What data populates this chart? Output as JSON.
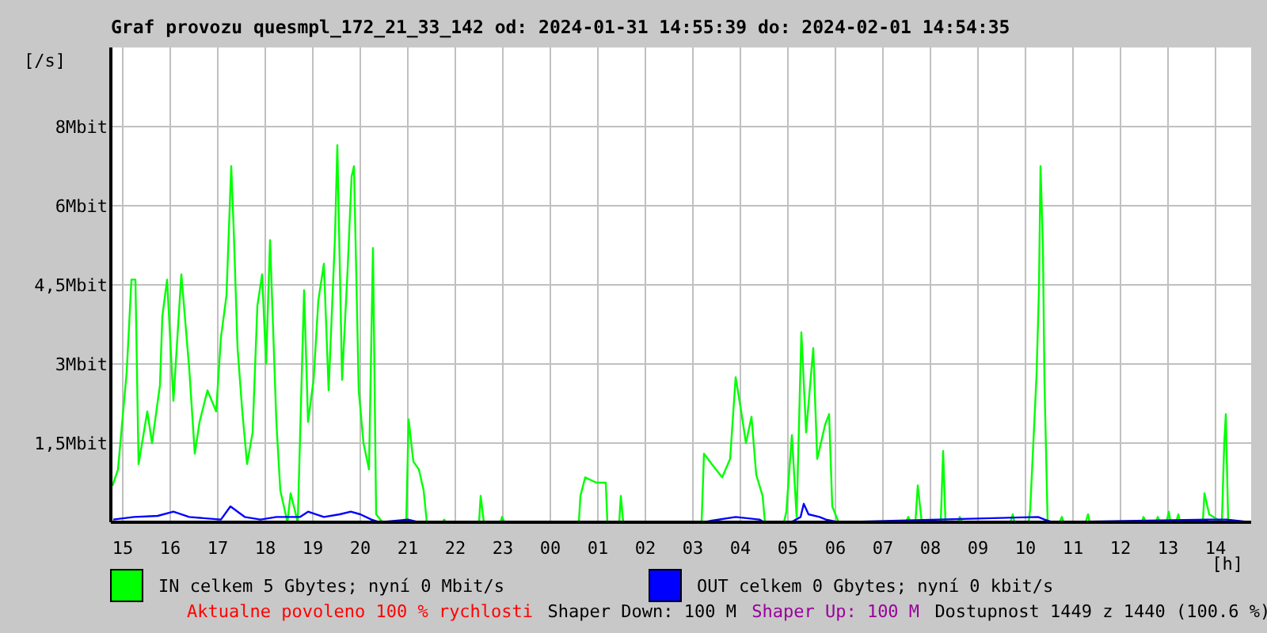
{
  "chart_data": {
    "type": "line",
    "title": "Graf provozu quesmpl_172_21_33_142 od: 2024-01-31 14:55:39 do: 2024-02-01 14:54:35",
    "ylabel": "[/s]",
    "xlabel": "[h]",
    "xlim": [
      "2024-01-31T14:45",
      "2024-02-01T14:45"
    ],
    "xticks": [
      {
        "value": "2024-01-31T15:00",
        "label": "15"
      },
      {
        "value": "2024-01-31T16:00",
        "label": "16"
      },
      {
        "value": "2024-01-31T17:00",
        "label": "17"
      },
      {
        "value": "2024-01-31T18:00",
        "label": "18"
      },
      {
        "value": "2024-01-31T19:00",
        "label": "19"
      },
      {
        "value": "2024-01-31T20:00",
        "label": "20"
      },
      {
        "value": "2024-01-31T21:00",
        "label": "21"
      },
      {
        "value": "2024-01-31T22:00",
        "label": "22"
      },
      {
        "value": "2024-01-31T23:00",
        "label": "23"
      },
      {
        "value": "2024-02-01T00:00",
        "label": "00"
      },
      {
        "value": "2024-02-01T01:00",
        "label": "01"
      },
      {
        "value": "2024-02-01T02:00",
        "label": "02"
      },
      {
        "value": "2024-02-01T03:00",
        "label": "03"
      },
      {
        "value": "2024-02-01T04:00",
        "label": "04"
      },
      {
        "value": "2024-02-01T05:00",
        "label": "05"
      },
      {
        "value": "2024-02-01T06:00",
        "label": "06"
      },
      {
        "value": "2024-02-01T07:00",
        "label": "07"
      },
      {
        "value": "2024-02-01T08:00",
        "label": "08"
      },
      {
        "value": "2024-02-01T09:00",
        "label": "09"
      },
      {
        "value": "2024-02-01T10:00",
        "label": "10"
      },
      {
        "value": "2024-02-01T11:00",
        "label": "11"
      },
      {
        "value": "2024-02-01T12:00",
        "label": "12"
      },
      {
        "value": "2024-02-01T13:00",
        "label": "13"
      },
      {
        "value": "2024-02-01T14:00",
        "label": "14"
      }
    ],
    "ylim": [
      0,
      9
    ],
    "yticks": [
      {
        "value": 1.5,
        "label": "1,5Mbit"
      },
      {
        "value": 3,
        "label": "3Mbit"
      },
      {
        "value": 4.5,
        "label": "4,5Mbit"
      },
      {
        "value": 6,
        "label": "6Mbit"
      },
      {
        "value": 7.5,
        "label": "8Mbit"
      }
    ],
    "grid": true,
    "legend": "bottom",
    "series": [
      {
        "name": "IN celkem 5 Gbytes; nyní 0 Mbit/s",
        "color": "#00ff00",
        "x": [
          "2024-01-31T14:47",
          "2024-01-31T14:54",
          "2024-01-31T15:05",
          "2024-01-31T15:11",
          "2024-01-31T15:16",
          "2024-01-31T15:20",
          "2024-01-31T15:31",
          "2024-01-31T15:37",
          "2024-01-31T15:47",
          "2024-01-31T15:50",
          "2024-01-31T15:56",
          "2024-01-31T16:04",
          "2024-01-31T16:14",
          "2024-01-31T16:24",
          "2024-01-31T16:31",
          "2024-01-31T16:37",
          "2024-01-31T16:47",
          "2024-01-31T16:58",
          "2024-01-31T17:04",
          "2024-01-31T17:11",
          "2024-01-31T17:17",
          "2024-01-31T17:20",
          "2024-01-31T17:25",
          "2024-01-31T17:31",
          "2024-01-31T17:37",
          "2024-01-31T17:44",
          "2024-01-31T17:50",
          "2024-01-31T17:56",
          "2024-01-31T18:01",
          "2024-01-31T18:06",
          "2024-01-31T18:14",
          "2024-01-31T18:19",
          "2024-01-31T18:28",
          "2024-01-31T18:32",
          "2024-01-31T18:41",
          "2024-01-31T18:49",
          "2024-01-31T18:54",
          "2024-01-31T19:01",
          "2024-01-31T19:07",
          "2024-01-31T19:14",
          "2024-01-31T19:20",
          "2024-01-31T19:28",
          "2024-01-31T19:31",
          "2024-01-31T19:37",
          "2024-01-31T19:44",
          "2024-01-31T19:49",
          "2024-01-31T19:52",
          "2024-01-31T19:58",
          "2024-01-31T20:04",
          "2024-01-31T20:11",
          "2024-01-31T20:16",
          "2024-01-31T20:20",
          "2024-01-31T20:28",
          "2024-01-31T20:44",
          "2024-01-31T20:58",
          "2024-01-31T21:01",
          "2024-01-31T21:07",
          "2024-01-31T21:14",
          "2024-01-31T21:20",
          "2024-01-31T21:24",
          "2024-01-31T21:44",
          "2024-01-31T21:46",
          "2024-01-31T21:48",
          "2024-01-31T22:30",
          "2024-01-31T22:32",
          "2024-01-31T22:36",
          "2024-01-31T22:57",
          "2024-01-31T22:59",
          "2024-01-31T23:02",
          "2024-02-01T00:36",
          "2024-02-01T00:38",
          "2024-02-01T00:44",
          "2024-02-01T00:58",
          "2024-02-01T01:10",
          "2024-02-01T01:12",
          "2024-02-01T01:27",
          "2024-02-01T01:29",
          "2024-02-01T01:32",
          "2024-02-01T03:11",
          "2024-02-01T03:14",
          "2024-02-01T03:24",
          "2024-02-01T03:37",
          "2024-02-01T03:47",
          "2024-02-01T03:54",
          "2024-02-01T04:01",
          "2024-02-01T04:07",
          "2024-02-01T04:14",
          "2024-02-01T04:20",
          "2024-02-01T04:28",
          "2024-02-01T04:31",
          "2024-02-01T04:55",
          "2024-02-01T04:58",
          "2024-02-01T05:05",
          "2024-02-01T05:11",
          "2024-02-01T05:17",
          "2024-02-01T05:23",
          "2024-02-01T05:32",
          "2024-02-01T05:37",
          "2024-02-01T05:47",
          "2024-02-01T05:52",
          "2024-02-01T05:56",
          "2024-02-01T06:04",
          "2024-02-01T07:29",
          "2024-02-01T07:32",
          "2024-02-01T07:35",
          "2024-02-01T07:41",
          "2024-02-01T07:44",
          "2024-02-01T07:49",
          "2024-02-01T08:13",
          "2024-02-01T08:16",
          "2024-02-01T08:19",
          "2024-02-01T08:35",
          "2024-02-01T08:37",
          "2024-02-01T08:40",
          "2024-02-01T09:41",
          "2024-02-01T09:44",
          "2024-02-01T09:46",
          "2024-02-01T10:04",
          "2024-02-01T10:06",
          "2024-02-01T10:14",
          "2024-02-01T10:17",
          "2024-02-01T10:19",
          "2024-02-01T10:22",
          "2024-02-01T10:24",
          "2024-02-01T10:28",
          "2024-02-01T10:43",
          "2024-02-01T10:46",
          "2024-02-01T10:48",
          "2024-02-01T11:16",
          "2024-02-01T11:19",
          "2024-02-01T11:21",
          "2024-02-01T12:27",
          "2024-02-01T12:29",
          "2024-02-01T12:32",
          "2024-02-01T12:45",
          "2024-02-01T12:47",
          "2024-02-01T12:50",
          "2024-02-01T12:58",
          "2024-02-01T13:01",
          "2024-02-01T13:03",
          "2024-02-01T13:10",
          "2024-02-01T13:13",
          "2024-02-01T13:15",
          "2024-02-01T13:44",
          "2024-02-01T13:46",
          "2024-02-01T13:52",
          "2024-02-01T14:08",
          "2024-02-01T14:11",
          "2024-02-01T14:13",
          "2024-02-01T14:16",
          "2024-02-01T14:44"
        ],
        "values": [
          0.69,
          1.0,
          2.85,
          4.6,
          4.6,
          1.1,
          2.1,
          1.5,
          2.6,
          3.9,
          4.6,
          2.3,
          4.7,
          2.9,
          1.3,
          1.9,
          2.5,
          2.1,
          3.5,
          4.3,
          6.75,
          5.6,
          3.3,
          2.1,
          1.1,
          1.7,
          4.1,
          4.7,
          3.0,
          5.35,
          1.9,
          0.6,
          0,
          0.55,
          0,
          4.4,
          1.9,
          2.7,
          4.2,
          4.9,
          2.5,
          5.4,
          7.15,
          2.7,
          4.8,
          6.55,
          6.75,
          2.5,
          1.5,
          1.0,
          5.2,
          0.15,
          0,
          0,
          0,
          1.95,
          1.15,
          1.0,
          0.6,
          0,
          0,
          0.05,
          0,
          0,
          0.5,
          0,
          0,
          0.1,
          0,
          0,
          0.5,
          0.85,
          0.75,
          0.75,
          0,
          0,
          0.5,
          0,
          0,
          1.3,
          1.1,
          0.85,
          1.2,
          2.75,
          2.1,
          1.5,
          2.0,
          0.9,
          0.5,
          0,
          0,
          0.2,
          1.65,
          0.1,
          3.6,
          1.7,
          3.3,
          1.2,
          1.85,
          2.05,
          0.3,
          0,
          0,
          0.1,
          0,
          0,
          0.7,
          0,
          0,
          1.35,
          0,
          0,
          0.1,
          0,
          0,
          0.15,
          0,
          0,
          0.25,
          2.8,
          4.4,
          6.75,
          5.25,
          2.65,
          0,
          0,
          0.1,
          0,
          0,
          0.15,
          0,
          0,
          0.1,
          0,
          0,
          0.1,
          0,
          0,
          0.2,
          0,
          0,
          0.15,
          0,
          0,
          0.55,
          0.15,
          0,
          1.5,
          2.05,
          0,
          0
        ]
      },
      {
        "name": "OUT celkem 0 Gbytes; nyní 0 kbit/s",
        "color": "#0000ff",
        "x": [
          "2024-01-31T14:48",
          "2024-01-31T15:14",
          "2024-01-31T15:44",
          "2024-01-31T16:04",
          "2024-01-31T16:24",
          "2024-01-31T17:04",
          "2024-01-31T17:16",
          "2024-01-31T17:34",
          "2024-01-31T17:54",
          "2024-01-31T18:14",
          "2024-01-31T18:44",
          "2024-01-31T18:54",
          "2024-01-31T19:14",
          "2024-01-31T19:34",
          "2024-01-31T19:48",
          "2024-01-31T20:00",
          "2024-01-31T20:14",
          "2024-01-31T20:24",
          "2024-01-31T21:00",
          "2024-01-31T21:14",
          "2024-02-01T03:14",
          "2024-02-01T03:24",
          "2024-02-01T03:54",
          "2024-02-01T04:24",
          "2024-02-01T04:30",
          "2024-02-01T05:04",
          "2024-02-01T05:16",
          "2024-02-01T05:20",
          "2024-02-01T05:26",
          "2024-02-01T05:40",
          "2024-02-01T05:48",
          "2024-02-01T06:04",
          "2024-02-01T10:16",
          "2024-02-01T10:24",
          "2024-02-01T10:34",
          "2024-02-01T13:52",
          "2024-02-01T14:14",
          "2024-02-01T14:44"
        ],
        "values": [
          0.05,
          0.1,
          0.12,
          0.2,
          0.1,
          0.05,
          0.3,
          0.1,
          0.05,
          0.1,
          0.1,
          0.2,
          0.1,
          0.15,
          0.2,
          0.15,
          0.05,
          0,
          0.05,
          0,
          0,
          0.03,
          0.1,
          0.05,
          0,
          0,
          0.1,
          0.35,
          0.15,
          0.1,
          0.05,
          0,
          0.1,
          0.05,
          0,
          0.05,
          0.05,
          0
        ]
      }
    ],
    "annotations": [
      "Aktualne povoleno 100 % rychlosti",
      "Shaper Down: 100 M",
      "Shaper Up: 100 M",
      "Dostupnost 1449 z 1440 (100.6 %)"
    ]
  }
}
